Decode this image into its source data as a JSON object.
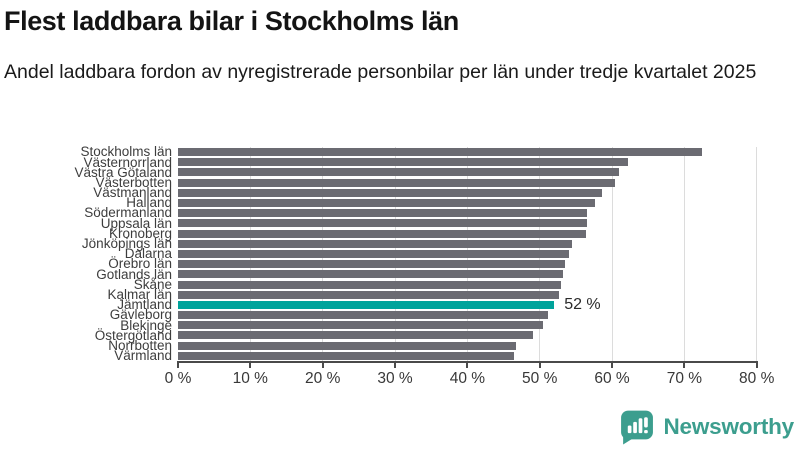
{
  "header": {
    "title": "Flest laddbara bilar i Stockholms län",
    "subtitle": "Andel laddbara fordon av nyregistrerade personbilar per län under tredje kvartalet 2025"
  },
  "chart_data": {
    "type": "bar",
    "orientation": "horizontal",
    "unit": "%",
    "categories": [
      "Stockholms län",
      "Västernorrland",
      "Västra Götaland",
      "Västerbotten",
      "Västmanland",
      "Halland",
      "Södermanland",
      "Uppsala län",
      "Kronoberg",
      "Jönköpings län",
      "Dalarna",
      "Örebro län",
      "Gotlands län",
      "Skåne",
      "Kalmar län",
      "Jämtland",
      "Gävleborg",
      "Blekinge",
      "Östergötland",
      "Norrbotten",
      "Värmland"
    ],
    "values": [
      72.5,
      62.2,
      60.9,
      60.4,
      58.6,
      57.6,
      56.6,
      56.5,
      56.4,
      54.5,
      54.1,
      53.5,
      53.2,
      53.0,
      52.6,
      52.0,
      51.1,
      50.5,
      49.1,
      46.7,
      46.4
    ],
    "highlight": {
      "category": "Jämtland",
      "index": 15,
      "value_label": "52 %"
    },
    "bar_color": "#6b6b72",
    "highlight_color": "#00a39b",
    "xlim": [
      0,
      80
    ],
    "x_ticks": [
      0,
      10,
      20,
      30,
      40,
      50,
      60,
      70,
      80
    ],
    "x_tick_labels": [
      "0 %",
      "10 %",
      "20 %",
      "30 %",
      "40 %",
      "50 %",
      "60 %",
      "70 %",
      "80 %"
    ],
    "grid": true,
    "legend": "none"
  },
  "footer": {
    "brand": "Newsworthy",
    "brand_color": "#3c9e8e",
    "logo_icon": "newsworthy-chart-bubble-icon"
  }
}
